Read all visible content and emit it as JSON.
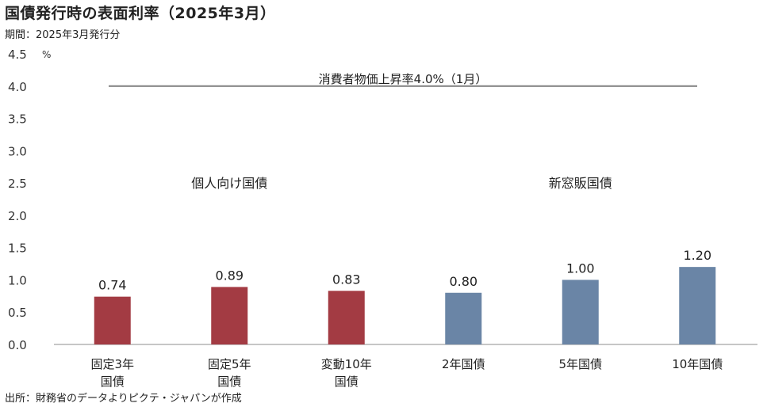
{
  "title": "国債発行時の表面利率（2025年3月）",
  "period": "期間：2025年3月発行分",
  "source": "出所：財務省のデータよりピクテ・ジャパンが作成",
  "chart_data": {
    "type": "bar",
    "unit": "%",
    "ylim": [
      0,
      4.5
    ],
    "yticks": [
      "0.0",
      "0.5",
      "1.0",
      "1.5",
      "2.0",
      "2.5",
      "3.0",
      "3.5",
      "4.0",
      "4.5"
    ],
    "categories": [
      "固定3年\n国債",
      "固定5年\n国債",
      "変動10年\n国債",
      "2年国債",
      "5年国債",
      "10年国債"
    ],
    "values": [
      0.74,
      0.89,
      0.83,
      0.8,
      1.0,
      1.2
    ],
    "value_labels": [
      "0.74",
      "0.89",
      "0.83",
      "0.80",
      "1.00",
      "1.20"
    ],
    "groups": [
      {
        "label": "個人向け国債",
        "color": "#a33b43"
      },
      {
        "label": "新窓販国債",
        "color": "#6a85a6"
      }
    ],
    "group_of_category": [
      0,
      0,
      0,
      1,
      1,
      1
    ],
    "reference_line": {
      "value": 4.0,
      "label": "消費者物価上昇率4.0%（1月）",
      "color": "#7f7f7f"
    },
    "grid": false,
    "legend": "none"
  }
}
